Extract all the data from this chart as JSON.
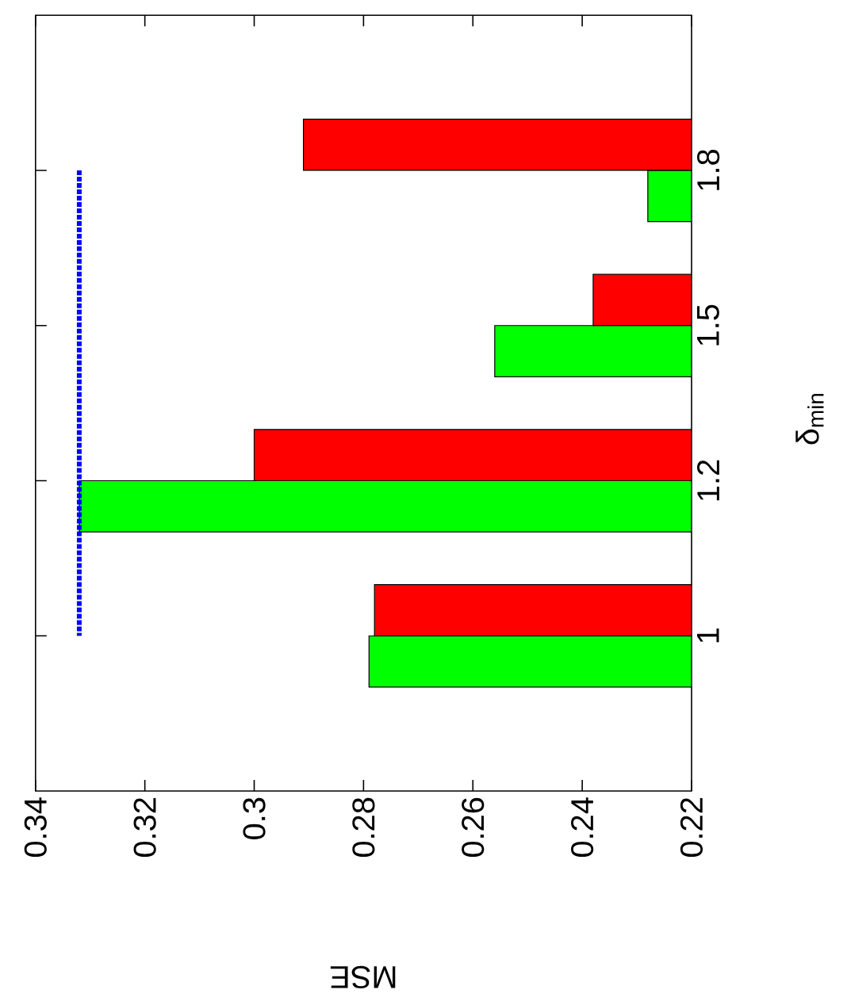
{
  "chart_data": {
    "type": "bar",
    "orientation": "horizontal",
    "xlabel": "MSE",
    "ylabel": "δ$_{min}$",
    "categories": [
      "1.8",
      "1.5",
      "1.2",
      "1"
    ],
    "series": [
      {
        "color": "#00ff00",
        "values": [
          0.228,
          0.256,
          0.332,
          0.279
        ]
      },
      {
        "color": "#ff0000",
        "values": [
          0.291,
          0.238,
          0.3,
          0.278
        ]
      }
    ],
    "xlim": [
      0.34,
      0.22
    ],
    "xticks": [
      0.34,
      0.32,
      0.3,
      0.28,
      0.26,
      0.24,
      0.22
    ],
    "ref_lines": [
      {
        "axis": "x",
        "value": 0.332,
        "color": "#0000ff",
        "line_style": "dotted"
      }
    ]
  }
}
